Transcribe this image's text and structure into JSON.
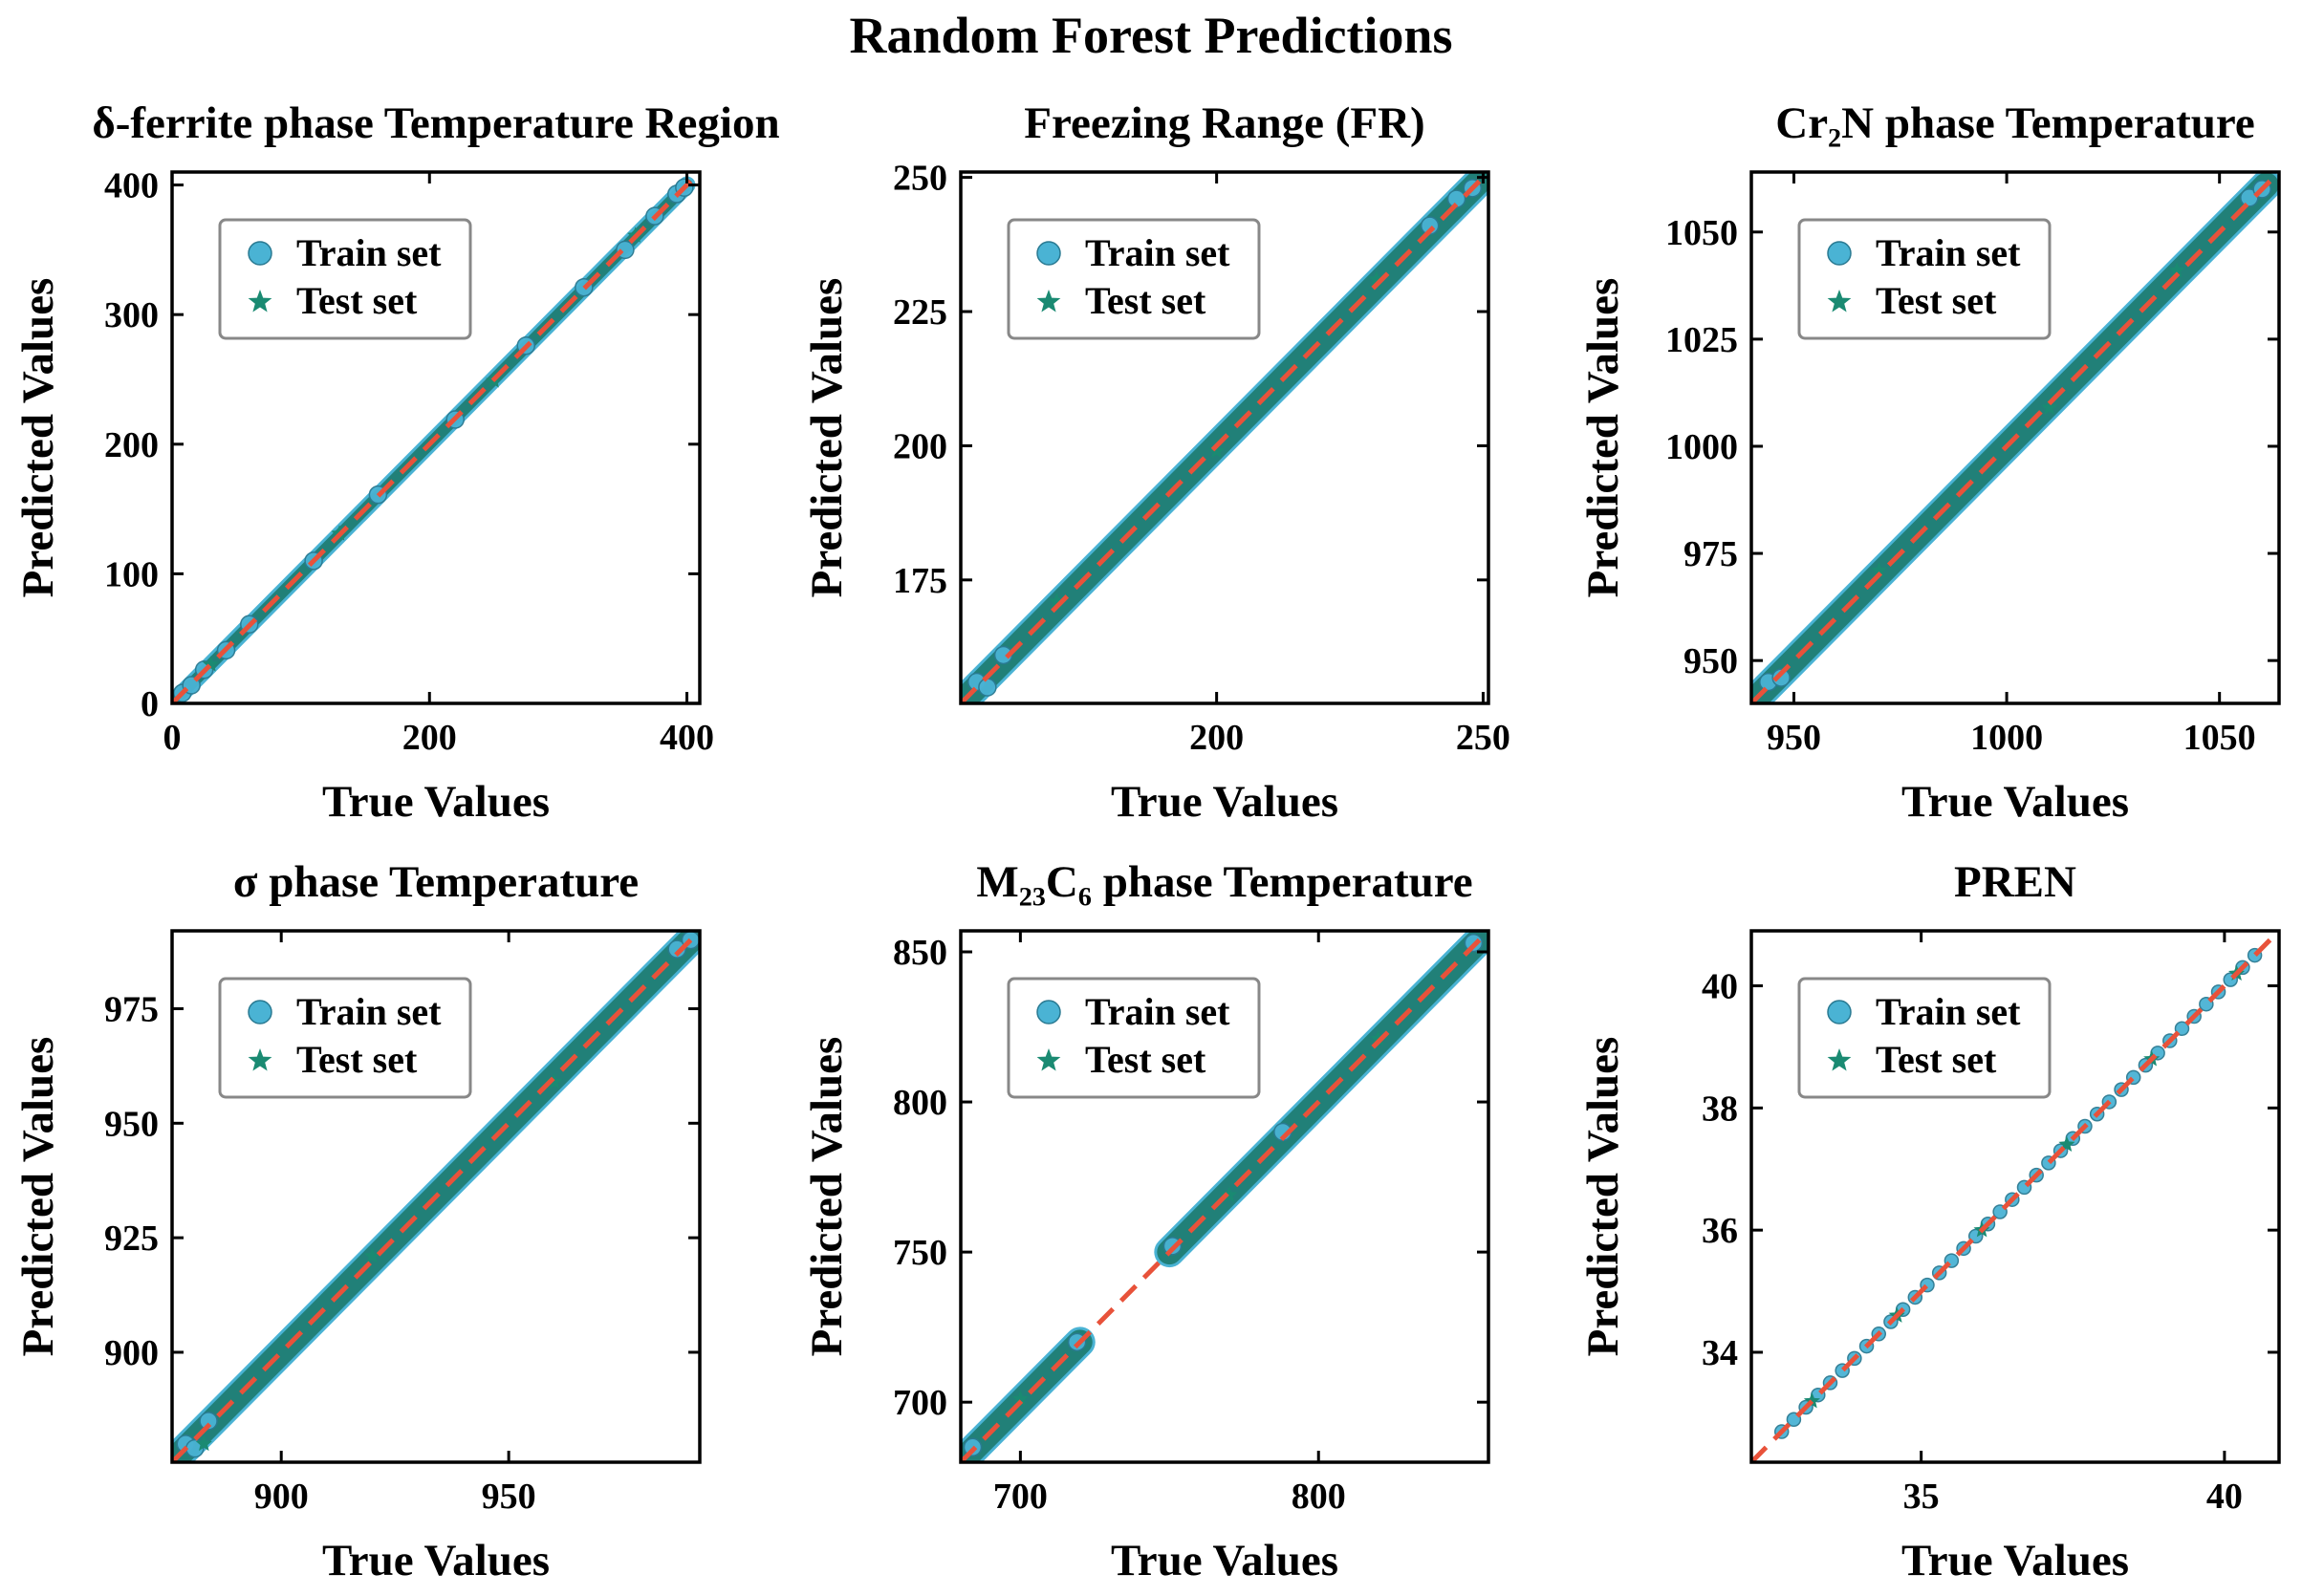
{
  "figure": {
    "suptitle": "Random Forest Predictions",
    "colors": {
      "train_fill": "#4ab3d4",
      "train_edge": "#2a7a92",
      "test_fill": "#1a8a72",
      "dense_band": "#1f7e74",
      "ideal_line": "#e8523a",
      "legend_edge": "#888888"
    }
  },
  "chart_data": [
    {
      "type": "scatter",
      "title": "δ-ferrite phase Temperature Region",
      "xlabel": "True Values",
      "ylabel": "Predicted Values",
      "xlim": [
        0,
        410
      ],
      "ylim": [
        0,
        410
      ],
      "xticks": [
        0,
        200,
        400
      ],
      "yticks": [
        0,
        100,
        200,
        300,
        400
      ],
      "series": [
        {
          "name": "Train set",
          "marker": "circle",
          "x_range": [
            0,
            400
          ],
          "points": [
            [
              8,
              8
            ],
            [
              15,
              14
            ],
            [
              25,
              26
            ],
            [
              42,
              41
            ],
            [
              60,
              61
            ],
            [
              110,
              110
            ],
            [
              160,
              161
            ],
            [
              220,
              219
            ],
            [
              275,
              276
            ],
            [
              320,
              321
            ],
            [
              352,
              350
            ],
            [
              375,
              376
            ],
            [
              392,
              393
            ],
            [
              398,
              398
            ]
          ]
        },
        {
          "name": "Test set",
          "marker": "star",
          "x_range": [
            0,
            400
          ],
          "points": [
            [
              30,
              30
            ],
            [
              130,
              131
            ],
            [
              250,
              249
            ],
            [
              360,
              361
            ]
          ]
        }
      ],
      "ideal_line": [
        0,
        410
      ],
      "legend_position": "upper-left"
    },
    {
      "type": "scatter",
      "title": "Freezing Range (FR)",
      "xlabel": "True Values",
      "ylabel": "Predicted Values",
      "xlim": [
        152,
        251
      ],
      "ylim": [
        152,
        251
      ],
      "xticks": [
        200,
        250
      ],
      "yticks": [
        175,
        200,
        225,
        250
      ],
      "series": [
        {
          "name": "Train set",
          "marker": "circle",
          "x_range": [
            154,
            249
          ],
          "points": [
            [
              155,
              156
            ],
            [
              157,
              155
            ],
            [
              160,
              161
            ],
            [
              240,
              241
            ],
            [
              245,
              246
            ],
            [
              248,
              248
            ]
          ]
        },
        {
          "name": "Test set",
          "marker": "star",
          "x_range": [
            154,
            249
          ],
          "points": [
            [
              170,
              171
            ],
            [
              200,
              199
            ],
            [
              230,
              231
            ]
          ]
        }
      ],
      "ideal_line": [
        152,
        251
      ],
      "legend_position": "upper-left"
    },
    {
      "type": "scatter",
      "title": "Cr₂N phase Temperature",
      "xlabel": "True Values",
      "ylabel": "Predicted Values",
      "xlim": [
        940,
        1064
      ],
      "ylim": [
        940,
        1064
      ],
      "xticks": [
        950,
        1000,
        1050
      ],
      "yticks": [
        950,
        975,
        1000,
        1025,
        1050
      ],
      "series": [
        {
          "name": "Train set",
          "marker": "circle",
          "x_range": [
            942,
            1061
          ],
          "points": [
            [
              944,
              945
            ],
            [
              947,
              946
            ],
            [
              1057,
              1058
            ],
            [
              1060,
              1060
            ]
          ]
        },
        {
          "name": "Test set",
          "marker": "star",
          "x_range": [
            942,
            1061
          ],
          "points": [
            [
              970,
              971
            ],
            [
              1010,
              1009
            ],
            [
              1040,
              1041
            ]
          ]
        }
      ],
      "ideal_line": [
        940,
        1064
      ],
      "legend_position": "upper-left"
    },
    {
      "type": "scatter",
      "title": "σ phase Temperature",
      "xlabel": "True Values",
      "ylabel": "Predicted Values",
      "xlim": [
        876,
        992
      ],
      "ylim": [
        876,
        992
      ],
      "xticks": [
        900,
        950
      ],
      "yticks": [
        900,
        925,
        950,
        975
      ],
      "series": [
        {
          "name": "Train set",
          "marker": "circle",
          "x_range": [
            878,
            990
          ],
          "points": [
            [
              879,
              880
            ],
            [
              881,
              879
            ],
            [
              884,
              885
            ],
            [
              987,
              988
            ],
            [
              990,
              990
            ]
          ]
        },
        {
          "name": "Test set",
          "marker": "star",
          "x_range": [
            878,
            990
          ],
          "points": [
            [
              883,
              880
            ],
            [
              920,
              921
            ],
            [
              960,
              959
            ]
          ]
        }
      ],
      "ideal_line": [
        876,
        992
      ],
      "legend_position": "upper-left"
    },
    {
      "type": "scatter",
      "title": "M₂₃C₆ phase Temperature",
      "xlabel": "True Values",
      "ylabel": "Predicted Values",
      "xlim": [
        680,
        857
      ],
      "ylim": [
        680,
        857
      ],
      "xticks": [
        700,
        800
      ],
      "yticks": [
        700,
        750,
        800,
        850
      ],
      "series": [
        {
          "name": "Train set",
          "marker": "circle",
          "x_range": [
            683,
            854
          ],
          "segments": [
            [
              683,
              720
            ],
            [
              750,
              854
            ]
          ],
          "points": [
            [
              684,
              685
            ],
            [
              719,
              720
            ],
            [
              751,
              752
            ],
            [
              788,
              790
            ],
            [
              852,
              853
            ]
          ]
        },
        {
          "name": "Test set",
          "marker": "star",
          "x_range": [
            683,
            854
          ],
          "segments": [
            [
              683,
              720
            ],
            [
              750,
              854
            ]
          ],
          "points": [
            [
              700,
              701
            ],
            [
              770,
              769
            ],
            [
              820,
              821
            ]
          ]
        }
      ],
      "ideal_line": [
        680,
        857
      ],
      "legend_position": "upper-left"
    },
    {
      "type": "scatter",
      "title": "PREN",
      "xlabel": "True Values",
      "ylabel": "Predicted Values",
      "xlim": [
        32.2,
        40.9
      ],
      "ylim": [
        32.2,
        40.9
      ],
      "xticks": [
        35,
        40
      ],
      "yticks": [
        34,
        36,
        38,
        40
      ],
      "series": [
        {
          "name": "Train set",
          "marker": "circle",
          "x_range": [
            32.7,
            40.5
          ],
          "points": [
            [
              32.7,
              32.7
            ],
            [
              32.9,
              32.9
            ],
            [
              33.1,
              33.1
            ],
            [
              33.3,
              33.3
            ],
            [
              33.5,
              33.5
            ],
            [
              33.7,
              33.7
            ],
            [
              33.9,
              33.9
            ],
            [
              34.1,
              34.1
            ],
            [
              34.3,
              34.3
            ],
            [
              34.5,
              34.5
            ],
            [
              34.7,
              34.7
            ],
            [
              34.9,
              34.9
            ],
            [
              35.1,
              35.1
            ],
            [
              35.3,
              35.3
            ],
            [
              35.5,
              35.5
            ],
            [
              35.7,
              35.7
            ],
            [
              35.9,
              35.9
            ],
            [
              36.1,
              36.1
            ],
            [
              36.3,
              36.3
            ],
            [
              36.5,
              36.5
            ],
            [
              36.7,
              36.7
            ],
            [
              36.9,
              36.9
            ],
            [
              37.1,
              37.1
            ],
            [
              37.3,
              37.3
            ],
            [
              37.5,
              37.5
            ],
            [
              37.7,
              37.7
            ],
            [
              37.9,
              37.9
            ],
            [
              38.1,
              38.1
            ],
            [
              38.3,
              38.3
            ],
            [
              38.5,
              38.5
            ],
            [
              38.7,
              38.7
            ],
            [
              38.9,
              38.9
            ],
            [
              39.1,
              39.1
            ],
            [
              39.3,
              39.3
            ],
            [
              39.5,
              39.5
            ],
            [
              39.7,
              39.7
            ],
            [
              39.9,
              39.9
            ],
            [
              40.1,
              40.1
            ],
            [
              40.3,
              40.3
            ],
            [
              40.5,
              40.5
            ]
          ]
        },
        {
          "name": "Test set",
          "marker": "star",
          "x_range": [
            32.7,
            40.5
          ],
          "points": [
            [
              33.2,
              33.2
            ],
            [
              34.6,
              34.6
            ],
            [
              36.0,
              36.0
            ],
            [
              37.4,
              37.4
            ],
            [
              38.8,
              38.8
            ],
            [
              40.2,
              40.2
            ]
          ]
        }
      ],
      "ideal_line": [
        32.2,
        40.9
      ],
      "legend_position": "upper-left"
    }
  ]
}
